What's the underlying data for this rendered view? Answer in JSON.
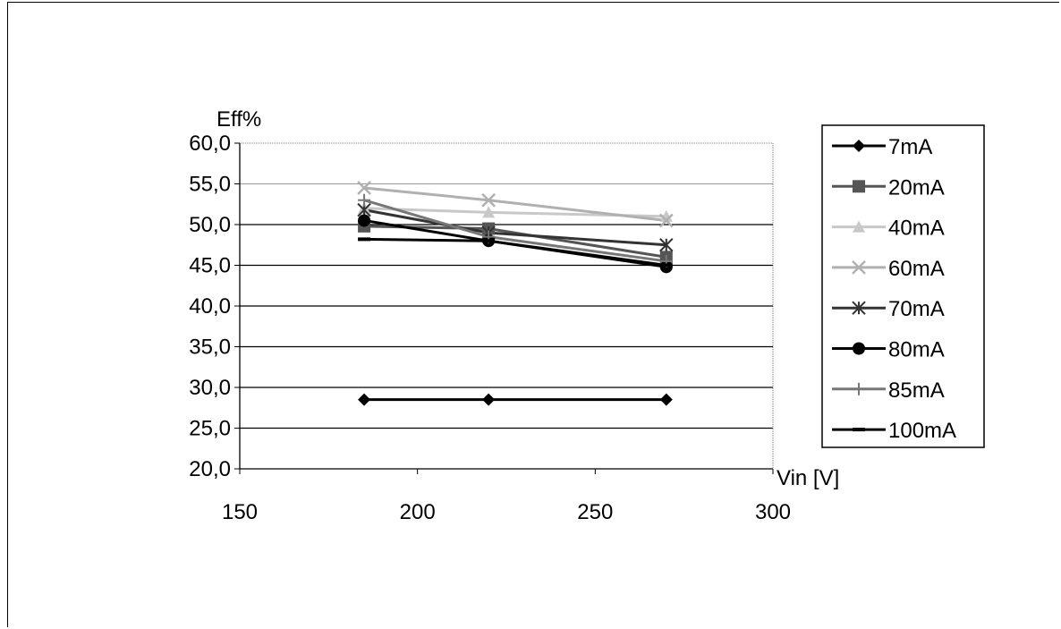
{
  "chart_data": {
    "type": "line",
    "ylabel": "Eff%",
    "xlabel": "Vin [V]",
    "xlim": [
      150,
      300
    ],
    "ylim": [
      20,
      60
    ],
    "xticks": [
      150,
      200,
      250,
      300
    ],
    "yticks": [
      20,
      25,
      30,
      35,
      40,
      45,
      50,
      55,
      60
    ],
    "ytick_labels": [
      "20,0",
      "25,0",
      "30,0",
      "35,0",
      "40,0",
      "45,0",
      "50,0",
      "55,0",
      "60,0"
    ],
    "grid": "horizontal",
    "legend_position": "right",
    "x": [
      185,
      220,
      270
    ],
    "series": [
      {
        "name": "7mA",
        "values": [
          28.5,
          28.5,
          28.5
        ],
        "color": "#000000",
        "marker": "diamond",
        "width": 3
      },
      {
        "name": "20mA",
        "values": [
          49.8,
          49.5,
          46.0
        ],
        "color": "#555555",
        "marker": "square",
        "width": 3
      },
      {
        "name": "40mA",
        "values": [
          52.0,
          51.5,
          51.0
        ],
        "color": "#c8c8c8",
        "marker": "triangle",
        "width": 3
      },
      {
        "name": "60mA",
        "values": [
          54.5,
          53.0,
          50.5
        ],
        "color": "#b0b0b0",
        "marker": "x",
        "width": 3
      },
      {
        "name": "70mA",
        "values": [
          51.8,
          49.0,
          47.5
        ],
        "color": "#333333",
        "marker": "star",
        "width": 3
      },
      {
        "name": "80mA",
        "values": [
          50.5,
          48.0,
          44.8
        ],
        "color": "#000000",
        "marker": "circle",
        "width": 3
      },
      {
        "name": "85mA",
        "values": [
          53.0,
          48.5,
          45.5
        ],
        "color": "#777777",
        "marker": "plus",
        "width": 3
      },
      {
        "name": "100mA",
        "values": [
          48.2,
          48.0,
          45.0
        ],
        "color": "#000000",
        "marker": "dash",
        "width": 3
      }
    ]
  }
}
